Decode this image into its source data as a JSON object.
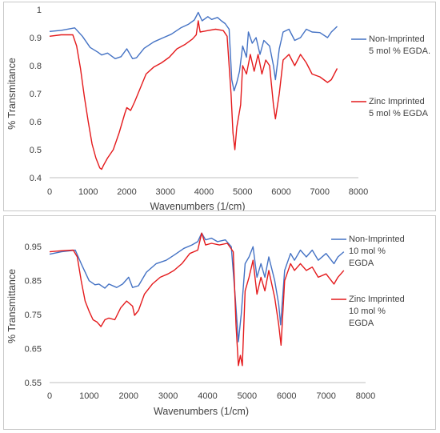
{
  "chart_data": [
    {
      "type": "line",
      "xlabel": "Wavenumbers (1/cm)",
      "ylabel": "% Transmitance",
      "xlim": [
        0,
        8000
      ],
      "ylim": [
        0.4,
        1.0
      ],
      "xticks": [
        "0",
        "1000",
        "2000",
        "3000",
        "4000",
        "5000",
        "6000",
        "7000",
        "8000"
      ],
      "yticks": [
        "0.4",
        "0.5",
        "0.6",
        "0.7",
        "0.8",
        "0.9",
        "1"
      ],
      "grid": false,
      "legend_position": "right",
      "series": [
        {
          "name_lines": [
            "Non-Imprinted",
            "5 mol % EGDA."
          ],
          "color": "#4472C4",
          "points": [
            [
              0,
              0.922
            ],
            [
              300,
              0.926
            ],
            [
              650,
              0.935
            ],
            [
              850,
              0.905
            ],
            [
              1050,
              0.865
            ],
            [
              1250,
              0.848
            ],
            [
              1350,
              0.838
            ],
            [
              1500,
              0.845
            ],
            [
              1700,
              0.825
            ],
            [
              1850,
              0.832
            ],
            [
              2000,
              0.86
            ],
            [
              2150,
              0.825
            ],
            [
              2250,
              0.828
            ],
            [
              2450,
              0.862
            ],
            [
              2700,
              0.885
            ],
            [
              2950,
              0.9
            ],
            [
              3150,
              0.912
            ],
            [
              3400,
              0.935
            ],
            [
              3600,
              0.948
            ],
            [
              3750,
              0.963
            ],
            [
              3850,
              0.99
            ],
            [
              3950,
              0.96
            ],
            [
              4100,
              0.975
            ],
            [
              4200,
              0.965
            ],
            [
              4350,
              0.972
            ],
            [
              4450,
              0.96
            ],
            [
              4550,
              0.95
            ],
            [
              4650,
              0.93
            ],
            [
              4720,
              0.75
            ],
            [
              4780,
              0.71
            ],
            [
              4850,
              0.74
            ],
            [
              4920,
              0.78
            ],
            [
              5000,
              0.87
            ],
            [
              5100,
              0.83
            ],
            [
              5150,
              0.92
            ],
            [
              5250,
              0.88
            ],
            [
              5350,
              0.9
            ],
            [
              5450,
              0.84
            ],
            [
              5550,
              0.89
            ],
            [
              5700,
              0.87
            ],
            [
              5800,
              0.8
            ],
            [
              5850,
              0.75
            ],
            [
              5950,
              0.86
            ],
            [
              6050,
              0.92
            ],
            [
              6200,
              0.93
            ],
            [
              6350,
              0.89
            ],
            [
              6500,
              0.9
            ],
            [
              6650,
              0.93
            ],
            [
              6800,
              0.92
            ],
            [
              7000,
              0.918
            ],
            [
              7200,
              0.9
            ],
            [
              7300,
              0.92
            ],
            [
              7450,
              0.94
            ]
          ]
        },
        {
          "name_lines": [
            "Zinc Imprinted",
            "5 mol % EGDA"
          ],
          "color": "#E41A1C",
          "points": [
            [
              0,
              0.905
            ],
            [
              300,
              0.91
            ],
            [
              600,
              0.91
            ],
            [
              700,
              0.87
            ],
            [
              800,
              0.79
            ],
            [
              900,
              0.69
            ],
            [
              1000,
              0.6
            ],
            [
              1100,
              0.52
            ],
            [
              1200,
              0.47
            ],
            [
              1300,
              0.435
            ],
            [
              1350,
              0.43
            ],
            [
              1400,
              0.445
            ],
            [
              1500,
              0.47
            ],
            [
              1650,
              0.5
            ],
            [
              1800,
              0.56
            ],
            [
              1950,
              0.63
            ],
            [
              2000,
              0.65
            ],
            [
              2100,
              0.64
            ],
            [
              2200,
              0.67
            ],
            [
              2350,
              0.72
            ],
            [
              2500,
              0.77
            ],
            [
              2700,
              0.795
            ],
            [
              2900,
              0.81
            ],
            [
              3100,
              0.83
            ],
            [
              3300,
              0.86
            ],
            [
              3500,
              0.875
            ],
            [
              3700,
              0.895
            ],
            [
              3800,
              0.91
            ],
            [
              3850,
              0.96
            ],
            [
              3900,
              0.92
            ],
            [
              4100,
              0.925
            ],
            [
              4300,
              0.93
            ],
            [
              4500,
              0.925
            ],
            [
              4600,
              0.905
            ],
            [
              4700,
              0.7
            ],
            [
              4750,
              0.56
            ],
            [
              4800,
              0.5
            ],
            [
              4850,
              0.58
            ],
            [
              4950,
              0.66
            ],
            [
              5000,
              0.8
            ],
            [
              5100,
              0.77
            ],
            [
              5200,
              0.84
            ],
            [
              5300,
              0.78
            ],
            [
              5400,
              0.84
            ],
            [
              5500,
              0.77
            ],
            [
              5600,
              0.82
            ],
            [
              5700,
              0.8
            ],
            [
              5800,
              0.66
            ],
            [
              5850,
              0.61
            ],
            [
              5950,
              0.7
            ],
            [
              6050,
              0.82
            ],
            [
              6200,
              0.84
            ],
            [
              6350,
              0.8
            ],
            [
              6500,
              0.84
            ],
            [
              6650,
              0.81
            ],
            [
              6800,
              0.77
            ],
            [
              7000,
              0.76
            ],
            [
              7200,
              0.74
            ],
            [
              7300,
              0.75
            ],
            [
              7450,
              0.79
            ]
          ]
        }
      ]
    },
    {
      "type": "line",
      "xlabel": "Wavenumbers  (1/cm)",
      "ylabel": "% Transmittance",
      "xlim": [
        0,
        8000
      ],
      "ylim": [
        0.55,
        1.0
      ],
      "xticks": [
        "0",
        "1000",
        "2000",
        "3000",
        "4000",
        "5000",
        "6000",
        "7000",
        "8000"
      ],
      "yticks": [
        "0.55",
        "0.65",
        "0.75",
        "0.85",
        "0.95"
      ],
      "grid": false,
      "legend_position": "right",
      "series": [
        {
          "name_lines": [
            "Non-Imprinted",
            "10 mol %",
            "EGDA"
          ],
          "color": "#4472C4",
          "points": [
            [
              0,
              0.928
            ],
            [
              300,
              0.935
            ],
            [
              650,
              0.94
            ],
            [
              800,
              0.9
            ],
            [
              1000,
              0.85
            ],
            [
              1150,
              0.838
            ],
            [
              1250,
              0.84
            ],
            [
              1400,
              0.828
            ],
            [
              1500,
              0.84
            ],
            [
              1700,
              0.83
            ],
            [
              1850,
              0.84
            ],
            [
              2000,
              0.86
            ],
            [
              2100,
              0.83
            ],
            [
              2250,
              0.835
            ],
            [
              2450,
              0.875
            ],
            [
              2700,
              0.9
            ],
            [
              2950,
              0.91
            ],
            [
              3150,
              0.925
            ],
            [
              3400,
              0.945
            ],
            [
              3600,
              0.955
            ],
            [
              3750,
              0.965
            ],
            [
              3850,
              0.99
            ],
            [
              3950,
              0.97
            ],
            [
              4100,
              0.975
            ],
            [
              4250,
              0.965
            ],
            [
              4450,
              0.97
            ],
            [
              4600,
              0.95
            ],
            [
              4700,
              0.8
            ],
            [
              4780,
              0.67
            ],
            [
              4850,
              0.75
            ],
            [
              4950,
              0.9
            ],
            [
              5050,
              0.92
            ],
            [
              5150,
              0.95
            ],
            [
              5250,
              0.86
            ],
            [
              5350,
              0.9
            ],
            [
              5450,
              0.86
            ],
            [
              5550,
              0.92
            ],
            [
              5700,
              0.85
            ],
            [
              5800,
              0.78
            ],
            [
              5850,
              0.72
            ],
            [
              5950,
              0.88
            ],
            [
              6100,
              0.93
            ],
            [
              6200,
              0.91
            ],
            [
              6350,
              0.94
            ],
            [
              6500,
              0.92
            ],
            [
              6650,
              0.94
            ],
            [
              6800,
              0.91
            ],
            [
              7000,
              0.93
            ],
            [
              7200,
              0.9
            ],
            [
              7300,
              0.92
            ],
            [
              7450,
              0.935
            ]
          ]
        },
        {
          "name_lines": [
            "Zinc Imprinted",
            "10 mol %",
            "EGDA"
          ],
          "color": "#E41A1C",
          "points": [
            [
              0,
              0.935
            ],
            [
              300,
              0.938
            ],
            [
              600,
              0.94
            ],
            [
              700,
              0.92
            ],
            [
              800,
              0.85
            ],
            [
              900,
              0.79
            ],
            [
              1000,
              0.76
            ],
            [
              1100,
              0.735
            ],
            [
              1200,
              0.728
            ],
            [
              1300,
              0.715
            ],
            [
              1400,
              0.735
            ],
            [
              1500,
              0.74
            ],
            [
              1650,
              0.735
            ],
            [
              1800,
              0.77
            ],
            [
              1950,
              0.79
            ],
            [
              2100,
              0.775
            ],
            [
              2150,
              0.748
            ],
            [
              2250,
              0.762
            ],
            [
              2400,
              0.81
            ],
            [
              2600,
              0.84
            ],
            [
              2800,
              0.86
            ],
            [
              3000,
              0.87
            ],
            [
              3150,
              0.88
            ],
            [
              3350,
              0.9
            ],
            [
              3550,
              0.93
            ],
            [
              3750,
              0.94
            ],
            [
              3850,
              0.99
            ],
            [
              3950,
              0.955
            ],
            [
              4100,
              0.96
            ],
            [
              4300,
              0.955
            ],
            [
              4500,
              0.96
            ],
            [
              4650,
              0.935
            ],
            [
              4720,
              0.72
            ],
            [
              4780,
              0.6
            ],
            [
              4830,
              0.63
            ],
            [
              4880,
              0.6
            ],
            [
              4950,
              0.82
            ],
            [
              5050,
              0.86
            ],
            [
              5150,
              0.91
            ],
            [
              5250,
              0.81
            ],
            [
              5350,
              0.86
            ],
            [
              5450,
              0.82
            ],
            [
              5550,
              0.88
            ],
            [
              5700,
              0.8
            ],
            [
              5800,
              0.72
            ],
            [
              5860,
              0.66
            ],
            [
              5950,
              0.85
            ],
            [
              6100,
              0.9
            ],
            [
              6200,
              0.88
            ],
            [
              6350,
              0.9
            ],
            [
              6500,
              0.88
            ],
            [
              6650,
              0.89
            ],
            [
              6800,
              0.86
            ],
            [
              7000,
              0.87
            ],
            [
              7200,
              0.84
            ],
            [
              7300,
              0.86
            ],
            [
              7450,
              0.88
            ]
          ]
        }
      ]
    }
  ]
}
